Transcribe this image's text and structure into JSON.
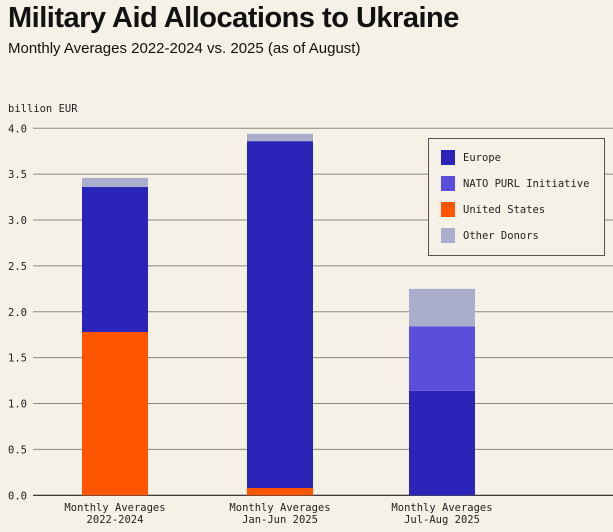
{
  "header": {
    "title": "Military Aid Allocations to Ukraine",
    "subtitle": "Monthly Averages 2022-2024 vs. 2025 (as of August)"
  },
  "chart_data": {
    "type": "bar",
    "stacked": true,
    "title": "Military Aid Allocations to Ukraine",
    "subtitle": "Monthly Averages 2022-2024 vs. 2025 (as of August)",
    "ylabel": "billion EUR",
    "xlabel": "",
    "ylim": [
      0,
      4.0
    ],
    "yticks": [
      "0.0",
      "0.5",
      "1.0",
      "1.5",
      "2.0",
      "2.5",
      "3.0",
      "3.5",
      "4.0"
    ],
    "grid": true,
    "legend_position": "top-right",
    "categories": [
      [
        "Monthly Averages",
        "2022-2024"
      ],
      [
        "Monthly Averages",
        "Jan-Jun 2025"
      ],
      [
        "Monthly Averages",
        "Jul-Aug 2025"
      ]
    ],
    "series": [
      {
        "name": "United States",
        "color": "#ff5500",
        "values": [
          1.78,
          0.08,
          0
        ]
      },
      {
        "name": "Europe",
        "color": "#2b24b8",
        "values": [
          1.58,
          3.78,
          1.14
        ]
      },
      {
        "name": "NATO PURL Initiative",
        "color": "#5a4fdc",
        "values": [
          0,
          0,
          0.7
        ]
      },
      {
        "name": "Other Donors",
        "color": "#aaaecc",
        "values": [
          0.1,
          0.08,
          0.41
        ]
      }
    ],
    "legend_order": [
      "Europe",
      "NATO PURL Initiative",
      "United States",
      "Other Donors"
    ]
  }
}
